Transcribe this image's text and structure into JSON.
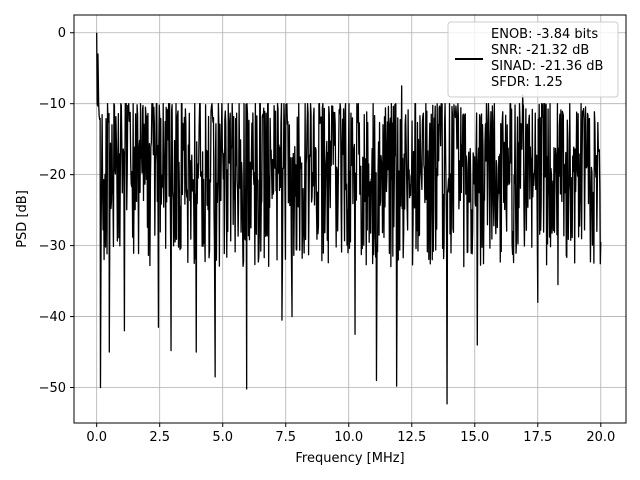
{
  "chart_data": {
    "type": "line",
    "xlabel": "Frequency [MHz]",
    "ylabel": "PSD [dB]",
    "xlim": [
      -0.9,
      21.0
    ],
    "ylim": [
      -55,
      2.5
    ],
    "x_ticks": [
      0.0,
      2.5,
      5.0,
      7.5,
      10.0,
      12.5,
      15.0,
      17.5,
      20.0
    ],
    "x_tick_labels": [
      "0.0",
      "2.5",
      "5.0",
      "7.5",
      "10.0",
      "12.5",
      "15.0",
      "17.5",
      "20.0"
    ],
    "y_ticks": [
      0,
      -10,
      -20,
      -30,
      -40,
      -50
    ],
    "y_tick_labels": [
      "0",
      "−10",
      "−20",
      "−30",
      "−40",
      "−50"
    ],
    "grid": true,
    "legend_position": "top-right",
    "legend_lines": [
      "ENOB: -3.84 bits",
      "SNR: -21.32 dB",
      "SINAD: -21.36 dB",
      "SFDR: 1.25"
    ],
    "series": [
      {
        "color": "#000000",
        "x_range": [
          0,
          20
        ],
        "sample_count": 1024,
        "typical_level_db": -20,
        "typical_spread_db": [
          -30,
          -11
        ],
        "peaks": [
          {
            "x": 0.0,
            "y": 0.0
          },
          {
            "x": 0.05,
            "y": -3.0
          },
          {
            "x": 7.75,
            "y": -5.5
          },
          {
            "x": 12.1,
            "y": -7.5
          },
          {
            "x": 16.9,
            "y": -8.8
          }
        ],
        "notches": [
          {
            "x": 0.15,
            "y": -50.0
          },
          {
            "x": 0.5,
            "y": -45.0
          },
          {
            "x": 1.1,
            "y": -42.0
          },
          {
            "x": 2.45,
            "y": -41.5
          },
          {
            "x": 2.95,
            "y": -44.8
          },
          {
            "x": 3.95,
            "y": -45.0
          },
          {
            "x": 4.7,
            "y": -48.5
          },
          {
            "x": 5.95,
            "y": -50.2
          },
          {
            "x": 7.35,
            "y": -40.5
          },
          {
            "x": 7.75,
            "y": -40.0
          },
          {
            "x": 10.25,
            "y": -42.5
          },
          {
            "x": 11.1,
            "y": -49.0
          },
          {
            "x": 11.9,
            "y": -49.8
          },
          {
            "x": 13.9,
            "y": -52.3
          },
          {
            "x": 15.1,
            "y": -44.0
          },
          {
            "x": 17.5,
            "y": -38.0
          },
          {
            "x": 18.3,
            "y": -35.5
          }
        ]
      }
    ]
  }
}
